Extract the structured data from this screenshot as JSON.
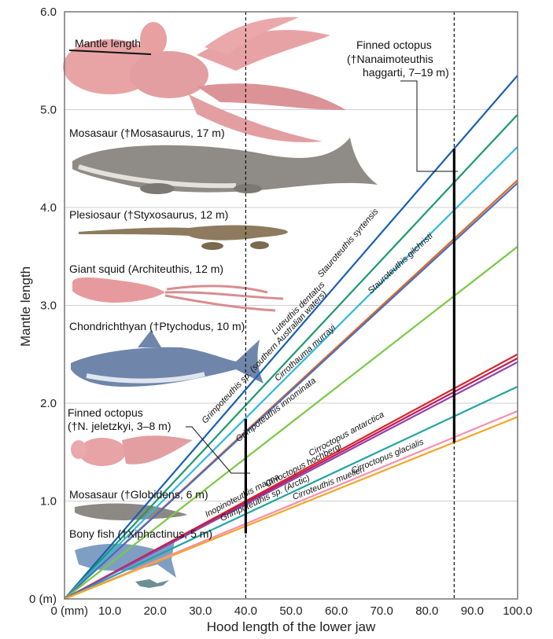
{
  "chart_data": {
    "type": "line",
    "xlabel": "Hood length of the lower jaw",
    "ylabel": "Mantle length",
    "xlim": [
      0,
      100
    ],
    "ylim": [
      0,
      6
    ],
    "x_ticks": [
      "0 (mm)",
      "10.0",
      "20.0",
      "30.0",
      "40.0",
      "50.0",
      "60.0",
      "70.0",
      "80.0",
      "90.0",
      "100.0"
    ],
    "y_ticks": [
      "0 (m)",
      "1.0",
      "2.0",
      "3.0",
      "4.0",
      "5.0",
      "6.0"
    ],
    "grid": "horizontal",
    "series": [
      {
        "name": "Stauroteuthis syrtensis",
        "color": "#1a5fb4",
        "x": [
          0,
          100
        ],
        "y": [
          0.0,
          5.35
        ]
      },
      {
        "name": "Grimpoteuthis sp. (southern Australian waters)",
        "color": "#1f9a6b",
        "x": [
          0,
          100
        ],
        "y": [
          0.0,
          4.95
        ]
      },
      {
        "name": "Luteuthis dentatus",
        "color": "#31b8e0",
        "x": [
          0,
          100
        ],
        "y": [
          0.0,
          4.62
        ]
      },
      {
        "name": "Stauroteuthis gilchristi",
        "color": "#e0691f",
        "x": [
          0,
          100
        ],
        "y": [
          0.0,
          4.28
        ]
      },
      {
        "name": "Cirrothauma murrayi",
        "color": "#4a6ec4",
        "x": [
          0,
          100
        ],
        "y": [
          0.0,
          4.25
        ]
      },
      {
        "name": "Grimpoteuthis innominata",
        "color": "#7ac943",
        "x": [
          0,
          100
        ],
        "y": [
          0.0,
          3.6
        ]
      },
      {
        "name": "Cirroctopus antarctica",
        "color": "#d62828",
        "x": [
          0,
          100
        ],
        "y": [
          0.0,
          2.5
        ]
      },
      {
        "name": "Inopinoteuthis magna",
        "color": "#c2185b",
        "x": [
          0,
          100
        ],
        "y": [
          0.0,
          2.46
        ]
      },
      {
        "name": "Cirroctopus hochbergi",
        "color": "#8e44ad",
        "x": [
          0,
          100
        ],
        "y": [
          0.0,
          2.42
        ]
      },
      {
        "name": "Grimpoteuthis sp. (Arctic)",
        "color": "#20a5a0",
        "x": [
          0,
          100
        ],
        "y": [
          0.0,
          2.17
        ]
      },
      {
        "name": "Cirroctopus glacialis",
        "color": "#f48fb1",
        "x": [
          0,
          100
        ],
        "y": [
          0.0,
          1.92
        ]
      },
      {
        "name": "Cirroteuthis muelleri",
        "color": "#f5a623",
        "x": [
          0,
          100
        ],
        "y": [
          0.0,
          1.86
        ]
      }
    ],
    "vertical_reference_lines": [
      40,
      86
    ],
    "range_bars": [
      {
        "x": 40,
        "y_min": 0.67,
        "y_max": 1.84
      },
      {
        "x": 86,
        "y_min": 1.6,
        "y_max": 4.6
      }
    ],
    "annotations": {
      "mantle_length_label": "Mantle length",
      "finned_octopus_large": [
        "Finned octopus",
        "(†Nanaimoteuthis",
        "haggarti, 7–19 m)"
      ],
      "mosasaur_large": "Mosasaur (†Mosasaurus, 17 m)",
      "plesiosaur": "Plesiosaur (†Styxosaurus, 12 m)",
      "giant_squid": "Giant squid (Architeuthis, 12 m)",
      "chondrichthyan": "Chondrichthyan (†Ptychodus, 10 m)",
      "finned_octopus_small": [
        "Finned octopus",
        "(†N. jeletzkyi, 3–8 m)"
      ],
      "mosasaur_small": "Mosasaur (†Globidens, 6 m)",
      "bony_fish": "Bony fish (†Xiphactinus, 5 m)"
    }
  }
}
